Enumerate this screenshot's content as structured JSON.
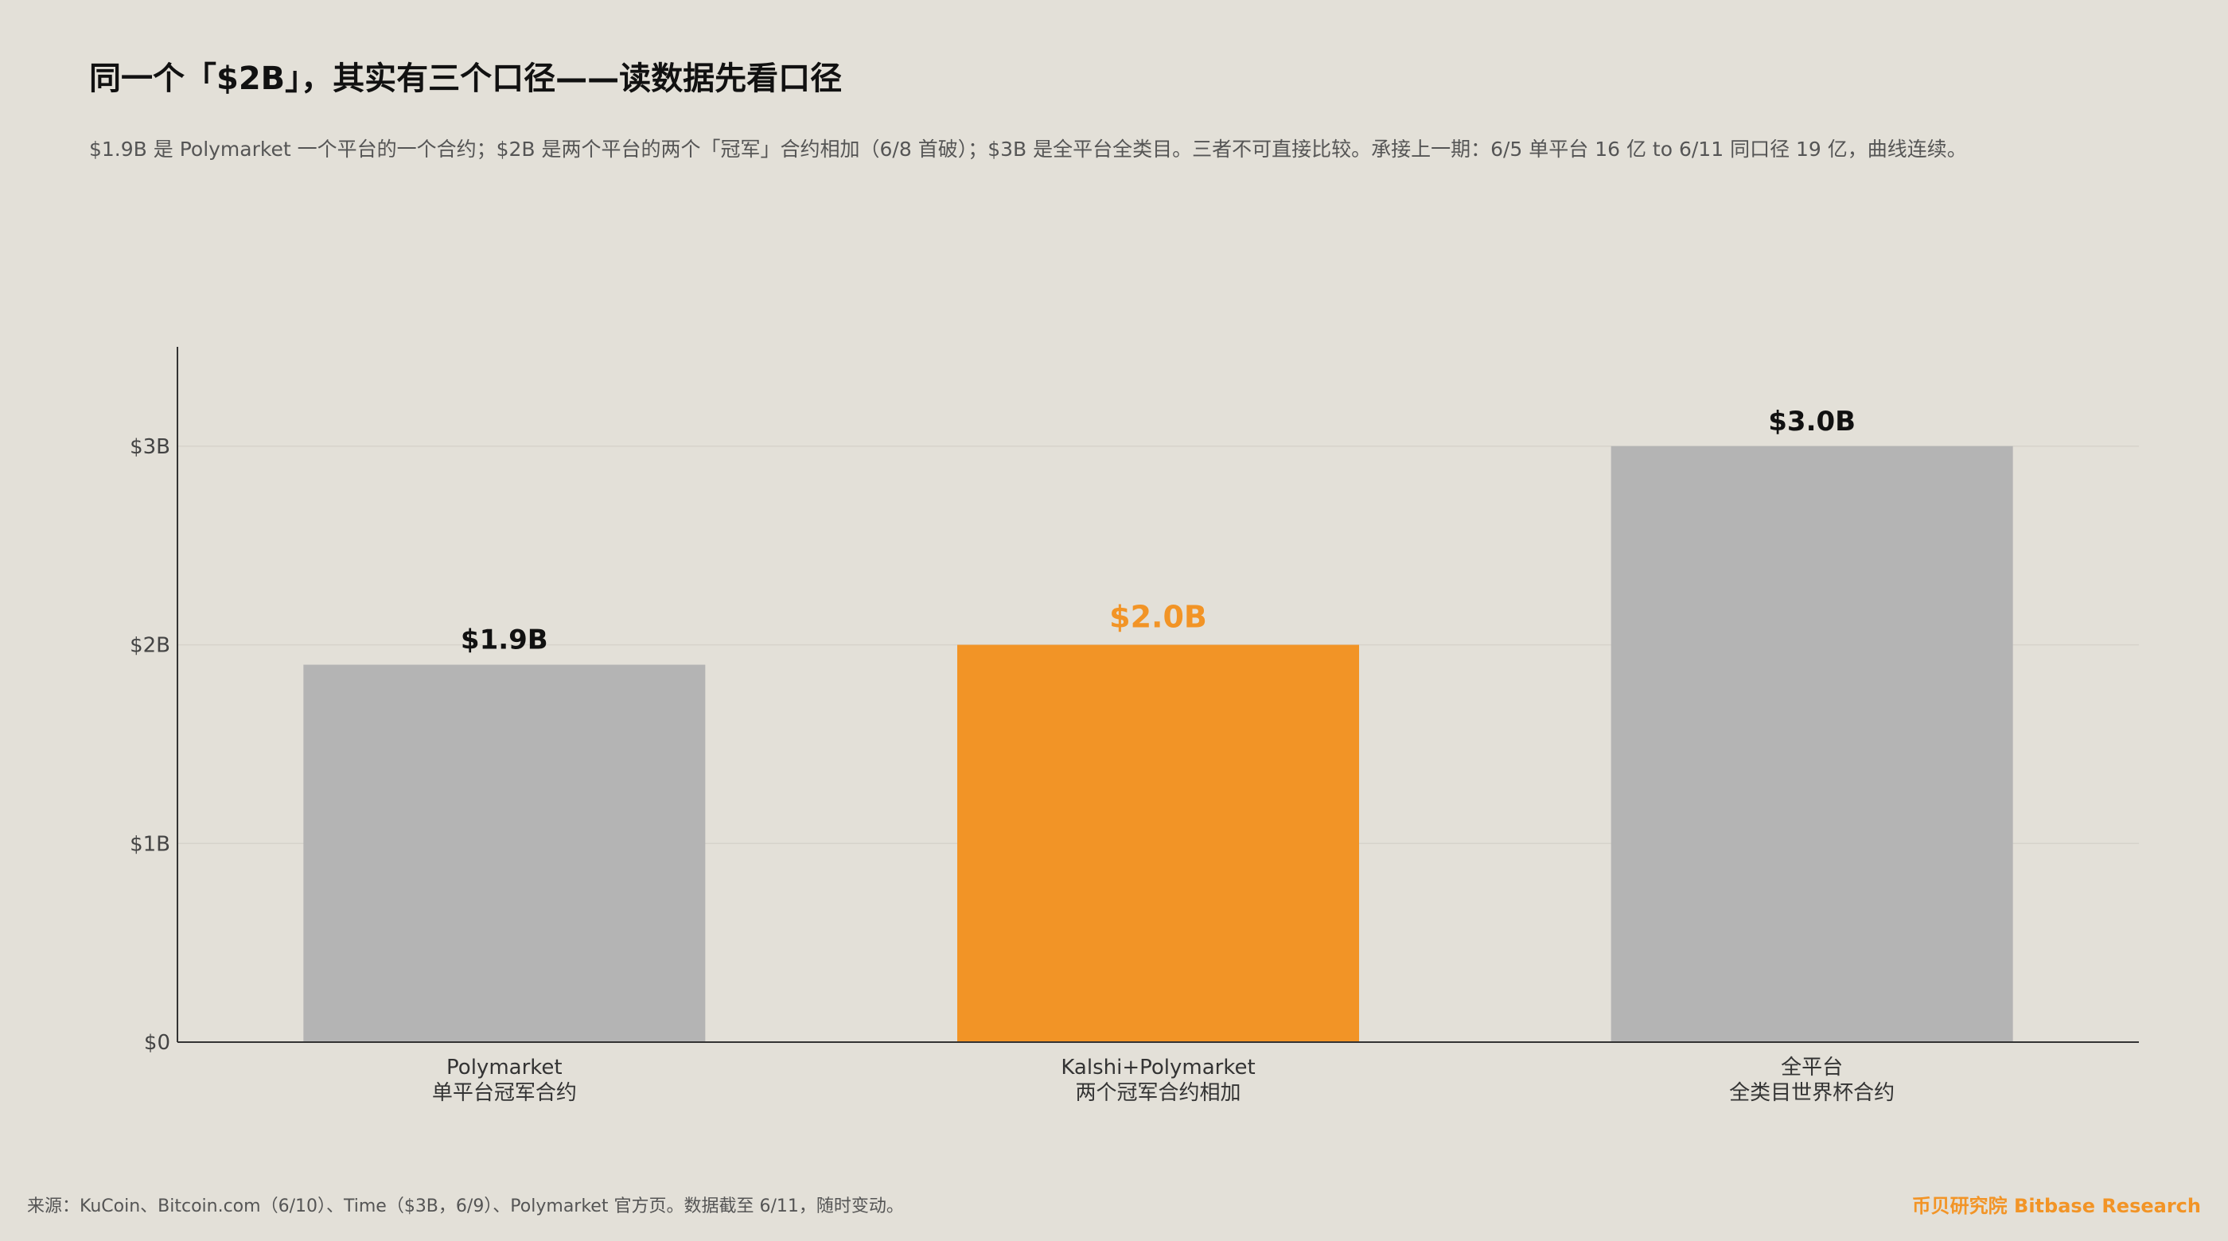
{
  "header": {
    "title": "同一个「$2B」，其实有三个口径——读数据先看口径",
    "subtitle": "$1.9B 是 Polymarket 一个平台的一个合约；$2B 是两个平台的两个「冠军」合约相加（6/8 首破）；$3B 是全平台全类目。三者不可直接比较。承接上一期：6/5 单平台 16 亿  to  6/11 同口径 19 亿，曲线连续。"
  },
  "footer": {
    "source": "来源：KuCoin、Bitcoin.com（6/10）、Time（$3B，6/9）、Polymarket 官方页。数据截至 6/11，随时变动。",
    "brand": "币贝研究院 Bitbase Research"
  },
  "colors": {
    "background": "#e3e0d8",
    "bar_default": "#b4b4b4",
    "bar_highlight": "#f29426",
    "brand": "#f29426",
    "axis": "#333333",
    "grid": "#d6d3cb"
  },
  "chart_data": {
    "type": "bar",
    "categories": [
      [
        "Polymarket",
        "单平台冠军合约"
      ],
      [
        "Kalshi+Polymarket",
        "两个冠军合约相加"
      ],
      [
        "全平台",
        "全类目世界杯合约"
      ]
    ],
    "values": [
      1.9,
      2.0,
      3.0
    ],
    "value_labels": [
      "$1.9B",
      "$2.0B",
      "$3.0B"
    ],
    "highlight_index": 1,
    "y_ticks": [
      0,
      1,
      2,
      3
    ],
    "y_tick_labels": [
      "$0",
      "$1B",
      "$2B",
      "$3B"
    ],
    "ylim": [
      0,
      3.5
    ],
    "grid": true,
    "xlabel": "",
    "ylabel": ""
  }
}
